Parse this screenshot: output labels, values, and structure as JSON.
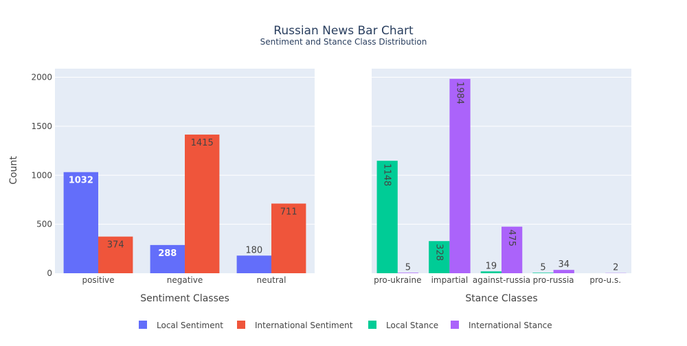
{
  "chart_data": {
    "title": "Russian News Bar Chart",
    "subtitle": "Sentiment and Stance Class Distribution",
    "ylabel": "Count",
    "y_ticks": [
      0,
      500,
      1000,
      1500,
      2000
    ],
    "ylim": [
      0,
      2088
    ],
    "grid": true,
    "legend_position": "bottom",
    "colors": {
      "local_sentiment": "#636efa",
      "international_sentiment": "#ef553b",
      "local_stance": "#00cc96",
      "international_stance": "#ab63fa",
      "plot_bg": "#e5ecf6",
      "text": "#444444",
      "title": "#2a3f5f"
    },
    "subplots": [
      {
        "type": "bar",
        "xlabel": "Sentiment Classes",
        "categories": [
          "positive",
          "negative",
          "neutral"
        ],
        "series": [
          {
            "name": "Local Sentiment",
            "color": "#636efa",
            "values": [
              1032,
              288,
              180
            ],
            "label_rotated": false,
            "label_color": "#ffffff"
          },
          {
            "name": "International Sentiment",
            "color": "#ef553b",
            "values": [
              374,
              1415,
              711
            ],
            "label_rotated": false,
            "label_color": "#444444"
          }
        ]
      },
      {
        "type": "bar",
        "xlabel": "Stance Classes",
        "categories": [
          "pro-ukraine",
          "impartial",
          "against-russia",
          "pro-russia",
          "pro-u.s."
        ],
        "series": [
          {
            "name": "Local Stance",
            "color": "#00cc96",
            "values": [
              1148,
              328,
              19,
              5,
              0
            ],
            "label_rotated": true,
            "label_color": "#444444"
          },
          {
            "name": "International Stance",
            "color": "#ab63fa",
            "values": [
              5,
              1984,
              475,
              34,
              2
            ],
            "label_rotated": true,
            "label_color": "#444444"
          }
        ]
      }
    ]
  },
  "legend": [
    {
      "label": "Local Sentiment",
      "color": "#636efa"
    },
    {
      "label": "International Sentiment",
      "color": "#ef553b"
    },
    {
      "label": "Local Stance",
      "color": "#00cc96"
    },
    {
      "label": "International Stance",
      "color": "#ab63fa"
    }
  ]
}
